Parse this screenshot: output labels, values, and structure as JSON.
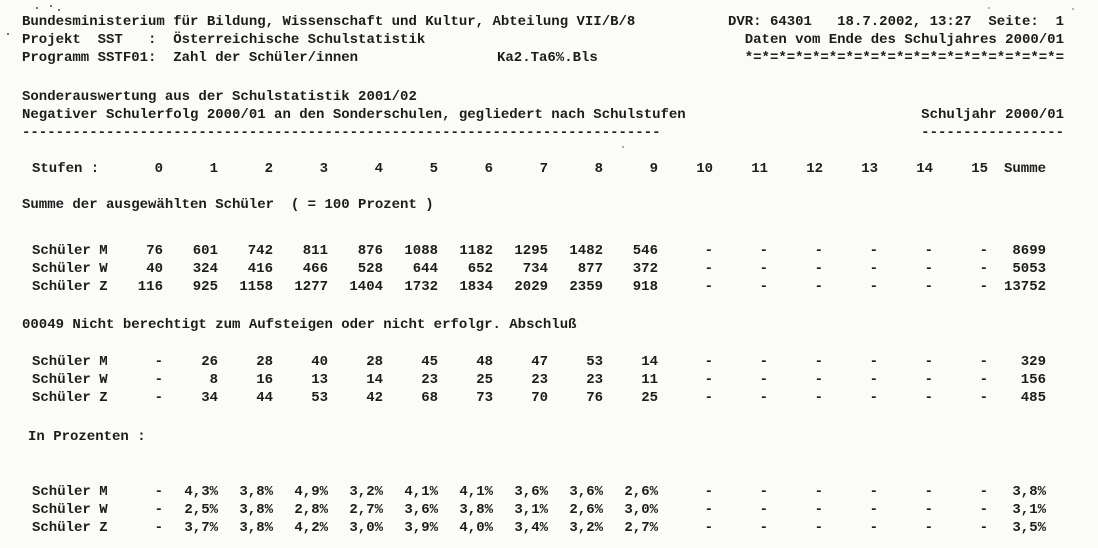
{
  "header": {
    "line1_left": "Bundesministerium für Bildung, Wissenschaft und Kultur, Abteilung VII/B/8",
    "line1_right": "DVR: 64301   18.7.2002, 13:27  Seite:  1",
    "line2_left": "Projekt  SST   :  Österreichische Schulstatistik",
    "line2_right": "Daten vom Ende des Schuljahres 2000/01",
    "line3_left": "Programm SSTF01:  Zahl der Schüler/innen",
    "line3_mid": "Ka2.Ta6%.Bls",
    "line3_right": "*=*=*=*=*=*=*=*=*=*=*=*=*=*=*=*=*=*=*="
  },
  "title": {
    "line1": "Sonderauswertung aus der Schulstatistik 2001/02",
    "line2": "Negativer Schulerfolg 2000/01 an den Sonderschulen, gegliedert nach Schulstufen",
    "underline_left": "----------------------------------------------------------------------------",
    "right_label": "Schuljahr 2000/01",
    "underline_right": "-----------------"
  },
  "table": {
    "stub_label": "Stufen :",
    "columns": [
      "0",
      "1",
      "2",
      "3",
      "4",
      "5",
      "6",
      "7",
      "8",
      "9",
      "10",
      "11",
      "12",
      "13",
      "14",
      "15",
      "Summe"
    ],
    "sections": [
      {
        "heading": "Summe der ausgewählten Schüler  ( = 100 Prozent )",
        "rows": [
          {
            "label": "Schüler M",
            "values": [
              "76",
              "601",
              "742",
              "811",
              "876",
              "1088",
              "1182",
              "1295",
              "1482",
              "546",
              "-",
              "-",
              "-",
              "-",
              "-",
              "-",
              "8699"
            ]
          },
          {
            "label": "Schüler W",
            "values": [
              "40",
              "324",
              "416",
              "466",
              "528",
              "644",
              "652",
              "734",
              "877",
              "372",
              "-",
              "-",
              "-",
              "-",
              "-",
              "-",
              "5053"
            ]
          },
          {
            "label": "Schüler Z",
            "values": [
              "116",
              "925",
              "1158",
              "1277",
              "1404",
              "1732",
              "1834",
              "2029",
              "2359",
              "918",
              "-",
              "-",
              "-",
              "-",
              "-",
              "-",
              "13752"
            ]
          }
        ]
      },
      {
        "heading": "00049 Nicht berechtigt zum Aufsteigen oder nicht erfolgr. Abschluß",
        "rows": [
          {
            "label": "Schüler M",
            "values": [
              "-",
              "26",
              "28",
              "40",
              "28",
              "45",
              "48",
              "47",
              "53",
              "14",
              "-",
              "-",
              "-",
              "-",
              "-",
              "-",
              "329"
            ]
          },
          {
            "label": "Schüler W",
            "values": [
              "-",
              "8",
              "16",
              "13",
              "14",
              "23",
              "25",
              "23",
              "23",
              "11",
              "-",
              "-",
              "-",
              "-",
              "-",
              "-",
              "156"
            ]
          },
          {
            "label": "Schüler Z",
            "values": [
              "-",
              "34",
              "44",
              "53",
              "42",
              "68",
              "73",
              "70",
              "76",
              "25",
              "-",
              "-",
              "-",
              "-",
              "-",
              "-",
              "485"
            ]
          }
        ]
      },
      {
        "heading": "In Prozenten :",
        "rows": [
          {
            "label": "Schüler M",
            "values": [
              "-",
              "4,3%",
              "3,8%",
              "4,9%",
              "3,2%",
              "4,1%",
              "4,1%",
              "3,6%",
              "3,6%",
              "2,6%",
              "-",
              "-",
              "-",
              "-",
              "-",
              "-",
              "3,8%"
            ]
          },
          {
            "label": "Schüler W",
            "values": [
              "-",
              "2,5%",
              "3,8%",
              "2,8%",
              "2,7%",
              "3,6%",
              "3,8%",
              "3,1%",
              "2,6%",
              "3,0%",
              "-",
              "-",
              "-",
              "-",
              "-",
              "-",
              "3,1%"
            ]
          },
          {
            "label": "Schüler Z",
            "values": [
              "-",
              "3,7%",
              "3,8%",
              "4,2%",
              "3,0%",
              "3,9%",
              "4,0%",
              "3,4%",
              "3,2%",
              "2,7%",
              "-",
              "-",
              "-",
              "-",
              "-",
              "-",
              "3,5%"
            ]
          }
        ]
      }
    ]
  }
}
